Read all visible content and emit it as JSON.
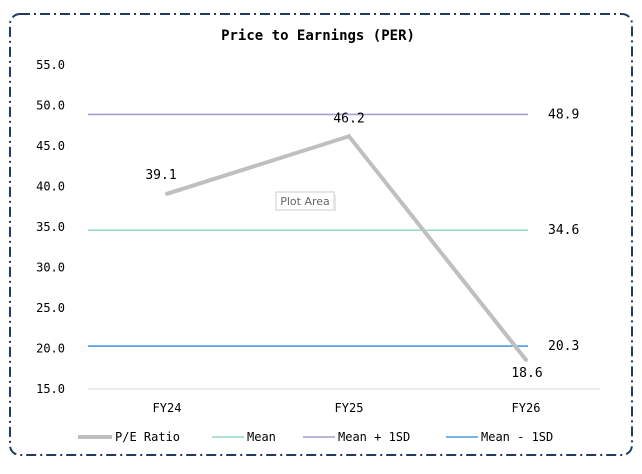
{
  "chart_data": {
    "type": "line",
    "title": "Price to Earnings (PER)",
    "categories": [
      "FY24",
      "FY25",
      "FY26"
    ],
    "ylim": [
      15.0,
      55.0
    ],
    "yticks": [
      "55.0",
      "50.0",
      "45.0",
      "40.0",
      "35.0",
      "30.0",
      "25.0",
      "20.0",
      "15.0"
    ],
    "grid": false,
    "legend_position": "bottom",
    "series": [
      {
        "name": "P/E Ratio",
        "values": [
          39.1,
          46.2,
          18.6
        ],
        "labels": [
          "39.1",
          "46.2",
          "18.6"
        ],
        "color": "#bfbfbf"
      },
      {
        "name": "Mean",
        "values": [
          34.6,
          34.6,
          34.6
        ],
        "end_label": "34.6",
        "color": "#8fd9c0"
      },
      {
        "name": "Mean + 1SD",
        "values": [
          48.9,
          48.9,
          48.9
        ],
        "end_label": "48.9",
        "color": "#a99cd9"
      },
      {
        "name": "Mean - 1SD",
        "values": [
          20.3,
          20.3,
          20.3
        ],
        "end_label": "20.3",
        "color": "#4a9ce0"
      }
    ]
  },
  "tooltip": {
    "text": "Plot Area"
  },
  "colors": {
    "border": "#1f3b63",
    "axis": "#d9d9d9",
    "text": "#000000"
  }
}
